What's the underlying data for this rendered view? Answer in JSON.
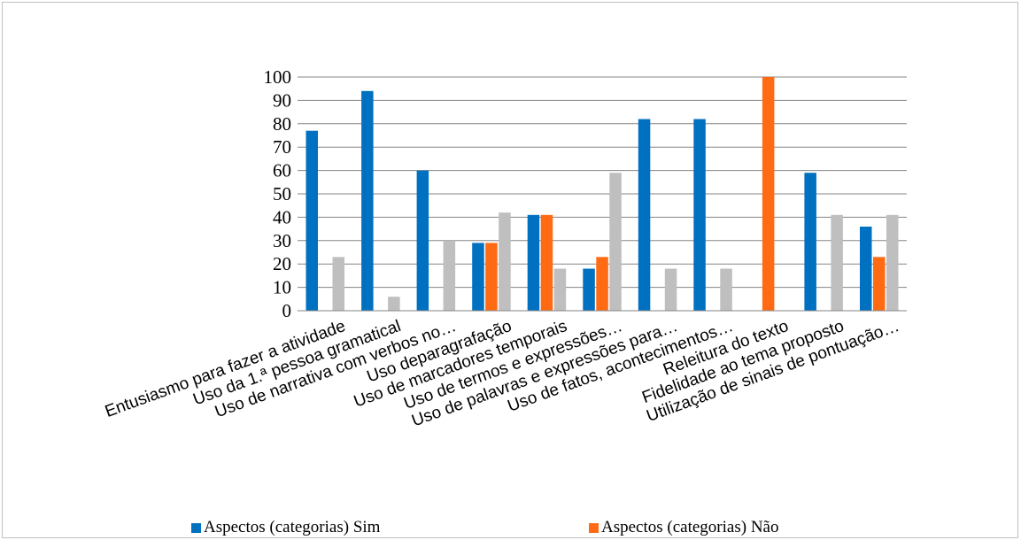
{
  "chart_data": {
    "type": "bar",
    "title": "",
    "xlabel": "",
    "ylabel": "",
    "ylim": [
      0,
      100
    ],
    "yticks": [
      0,
      10,
      20,
      30,
      40,
      50,
      60,
      70,
      80,
      90,
      100
    ],
    "grid": true,
    "legend_position": "bottom",
    "categories": [
      "Entusiasmo para fazer a atividade",
      "Uso da 1.ª pessoa gramatical",
      "Uso de narrativa com verbos no…",
      "Uso deparagrafação",
      "Uso de marcadores temporais",
      "Uso de termos e expressões…",
      "Uso de palavras  e expressões para…",
      "Uso de fatos, acontecimentos…",
      "Releitura do texto",
      "Fidelidade ao tema proposto",
      "Utilização de sinais de pontuação…"
    ],
    "series": [
      {
        "name": "Aspectos (categorias) Sim",
        "color": "#0070c0",
        "values": [
          77,
          94,
          60,
          29,
          41,
          18,
          82,
          82,
          0,
          59,
          36
        ]
      },
      {
        "name": "Aspectos (categorias) Não",
        "color": "#ff6a13",
        "values": [
          0,
          0,
          0,
          29,
          41,
          23,
          0,
          0,
          100,
          0,
          23
        ]
      },
      {
        "name": "",
        "color": "#bfbfbf",
        "values": [
          23,
          6,
          30,
          42,
          18,
          59,
          18,
          18,
          0,
          41,
          41
        ]
      }
    ]
  }
}
